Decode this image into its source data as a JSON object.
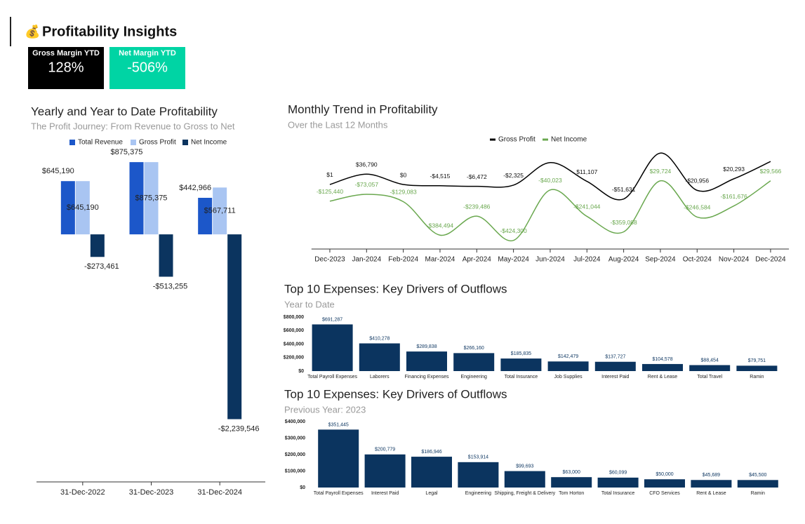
{
  "header": {
    "icon": "💰",
    "title": "Profitability Insights"
  },
  "kpis": [
    {
      "label": "Gross Margin YTD",
      "value": "128%",
      "color": "#000000"
    },
    {
      "label": "Net Margin YTD",
      "value": "-506%",
      "color": "#00d4a4"
    }
  ],
  "chart_data": [
    {
      "type": "bar",
      "title": "Yearly and Year to Date Profitability",
      "subtitle": "The Profit Journey: From Revenue to Gross to Net",
      "categories": [
        "31-Dec-2022",
        "31-Dec-2023",
        "31-Dec-2024"
      ],
      "series": [
        {
          "name": "Total Revenue",
          "color": "#1c57c9",
          "values": [
            645190,
            875375,
            442966
          ],
          "value_labels": [
            "$645,190",
            "$875,375",
            "$442,966"
          ]
        },
        {
          "name": "Gross Profit",
          "color": "#a9c5f2",
          "values": [
            645190,
            875375,
            567711
          ],
          "value_labels": [
            "$645,190",
            "$875,375",
            "$567,711"
          ]
        },
        {
          "name": "Net Income",
          "color": "#0b345f",
          "values": [
            -273461,
            -513255,
            -2239546
          ],
          "value_labels": [
            "-$273,461",
            "-$513,255",
            "-$2,239,546"
          ]
        }
      ],
      "ylim": [
        -3000000,
        1140000
      ],
      "legend": "top"
    },
    {
      "type": "line",
      "title": "Monthly Trend in Profitability",
      "subtitle": "Over the Last 12 Months",
      "categories": [
        "Dec-2023",
        "Jan-2024",
        "Feb-2024",
        "Mar-2024",
        "Apr-2024",
        "May-2024",
        "Jun-2024",
        "Jul-2024",
        "Aug-2024",
        "Sep-2024",
        "Oct-2024",
        "Nov-2024",
        "Dec-2024"
      ],
      "series": [
        {
          "name": "Gross Profit",
          "color": "#000000",
          "values": [
            1,
            36790,
            0,
            -4515,
            -6472,
            -2325,
            78000,
            11107,
            -51631,
            112000,
            -20956,
            20293,
            82000
          ],
          "value_labels": [
            "$1",
            "$36,790",
            "$0",
            "-$4,515",
            "-$6,472",
            "-$2,325",
            null,
            "$11,107",
            "-$51,631",
            null,
            "-$20,956",
            "$20,293",
            null
          ]
        },
        {
          "name": "Net Income",
          "color": "#6aa84f",
          "axis": "y2",
          "values": [
            -125440,
            -73057,
            -129083,
            -384494,
            -239486,
            -424300,
            -40023,
            -241044,
            -359088,
            29724,
            -246584,
            -161676,
            29566
          ],
          "value_labels": [
            "-$125,440",
            "-$73,057",
            "-$129,083",
            "-$384,494",
            "-$239,486",
            "-$424,300",
            "-$40,023",
            "-$241,044",
            "-$359,088",
            "$29,724",
            "-$246,584",
            "-$161,676",
            "$29,566"
          ]
        }
      ],
      "ylim": [
        -230000,
        132500
      ],
      "y2lim": [
        -490000,
        285000
      ],
      "smooth": true,
      "legend": "top"
    },
    {
      "type": "bar",
      "title": "Top 10 Expenses: Key Drivers of Outflows",
      "subtitle": "Year to Date",
      "categories": [
        "Total Payroll Expenses",
        "Laborers",
        "Financing Expenses",
        "Engineering",
        "Total Insurance",
        "Job Supplies",
        "Interest Paid",
        "Rent & Lease",
        "Total Travel",
        "Ramin"
      ],
      "values": [
        691287,
        410278,
        289838,
        266160,
        185835,
        142479,
        137727,
        104578,
        88454,
        79751
      ],
      "value_labels": [
        "$691,287",
        "$410,278",
        "$289,838",
        "$266,160",
        "$185,835",
        "$142,479",
        "$137,727",
        "$104,578",
        "$88,454",
        "$79,751"
      ],
      "color": "#0b345f",
      "ylim": [
        0,
        800000
      ],
      "yticks": [
        {
          "value": 0,
          "label": "$0"
        },
        {
          "value": 200000,
          "label": "$200,000"
        },
        {
          "value": 400000,
          "label": "$400,000"
        },
        {
          "value": 600000,
          "label": "$600,000"
        },
        {
          "value": 800000,
          "label": "$800,000"
        }
      ]
    },
    {
      "type": "bar",
      "title": "Top 10 Expenses: Key Drivers of Outflows",
      "subtitle": "Previous Year: 2023",
      "categories": [
        "Total Payroll Expenses",
        "Interest Paid",
        "Legal",
        "Engineering",
        "Shipping, Freight & Delivery",
        "Tom Horton",
        "Total Insurance",
        "CFO Services",
        "Rent & Lease",
        "Ramin"
      ],
      "values": [
        351445,
        200779,
        186946,
        153914,
        99693,
        63000,
        60099,
        50000,
        45689,
        45500
      ],
      "value_labels": [
        "$351,445",
        "$200,779",
        "$186,946",
        "$153,914",
        "$99,693",
        "$63,000",
        "$60,099",
        "$50,000",
        "$45,689",
        "$45,500"
      ],
      "color": "#0b345f",
      "ylim": [
        0,
        400000
      ],
      "yticks": [
        {
          "value": 0,
          "label": "$0"
        },
        {
          "value": 100000,
          "label": "$100,000"
        },
        {
          "value": 200000,
          "label": "$200,000"
        },
        {
          "value": 300000,
          "label": "$300,000"
        },
        {
          "value": 400000,
          "label": "$400,000"
        }
      ]
    }
  ]
}
